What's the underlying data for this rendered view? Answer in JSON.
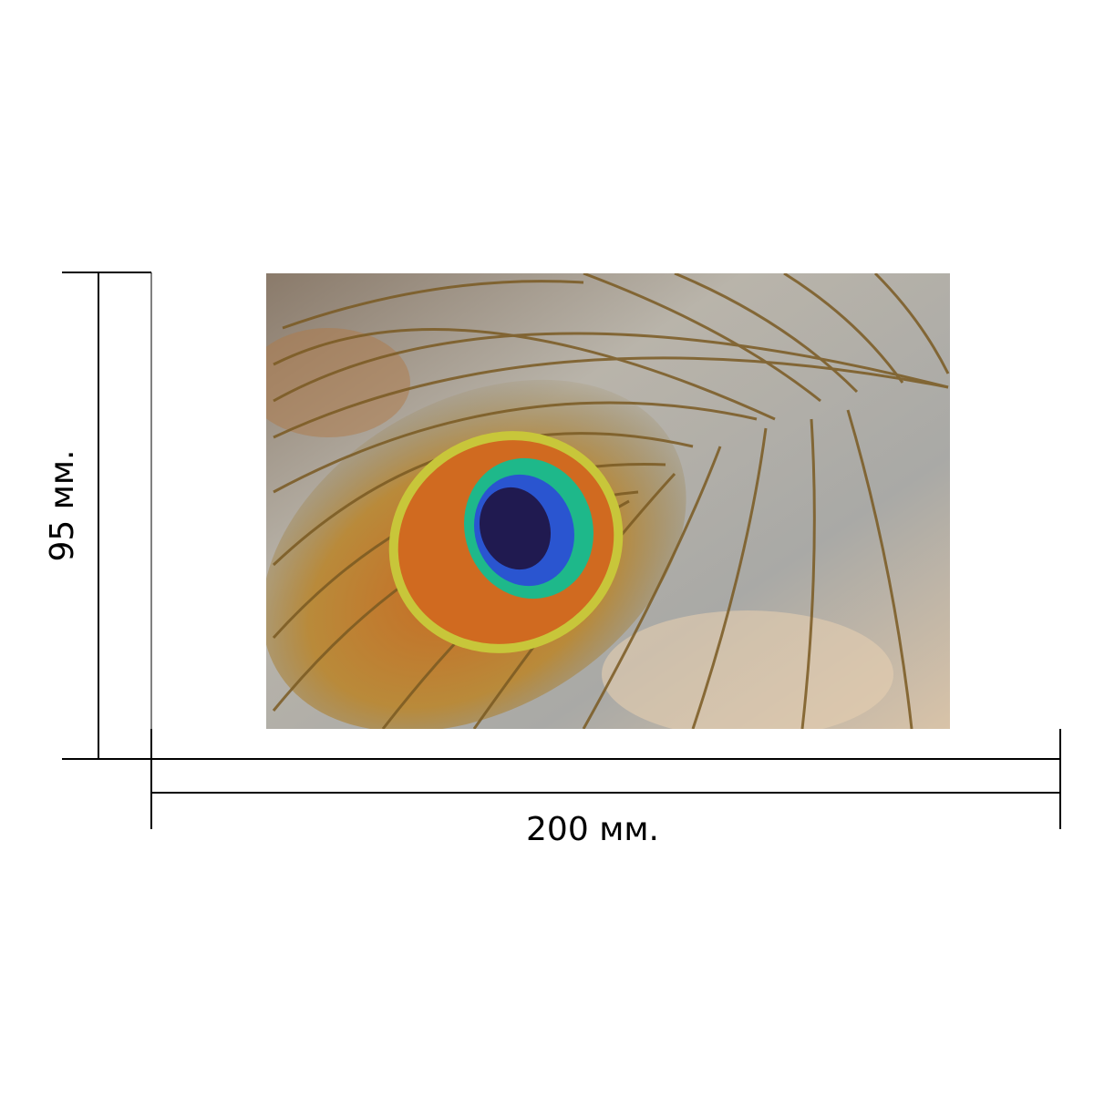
{
  "labels": {
    "height": "95 мм.",
    "width": "200 мм."
  }
}
